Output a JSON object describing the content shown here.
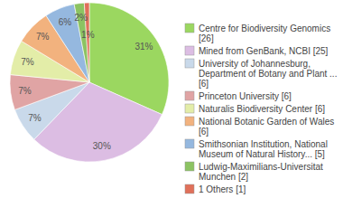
{
  "chart_data": {
    "type": "pie",
    "categories": [
      "Centre for Biodiversity Genomics [26]",
      "Mined from GenBank, NCBI [25]",
      "University of Johannesburg, Department of Botany and Plant ... [6]",
      "Princeton University [6]",
      "Naturalis Biodiversity Center [6]",
      "National Botanic Garden of Wales [6]",
      "Smithsonian Institution, National Museum of Natural History... [5]",
      "Ludwig-Maximilians-Universitat Munchen [2]",
      "1 Others [1]"
    ],
    "values": [
      31,
      30,
      7,
      7,
      7,
      7,
      6,
      2,
      1
    ],
    "value_labels": [
      "31%",
      "30%",
      "7%",
      "7%",
      "7%",
      "7%",
      "6%",
      "2%",
      "1%"
    ],
    "colors": [
      "#9bd760",
      "#dcbde3",
      "#c9d9ea",
      "#e0a4a4",
      "#e3eda8",
      "#f2b27e",
      "#95b8df",
      "#8cc362",
      "#e0705a"
    ],
    "data_labels": true,
    "legend": "right"
  }
}
